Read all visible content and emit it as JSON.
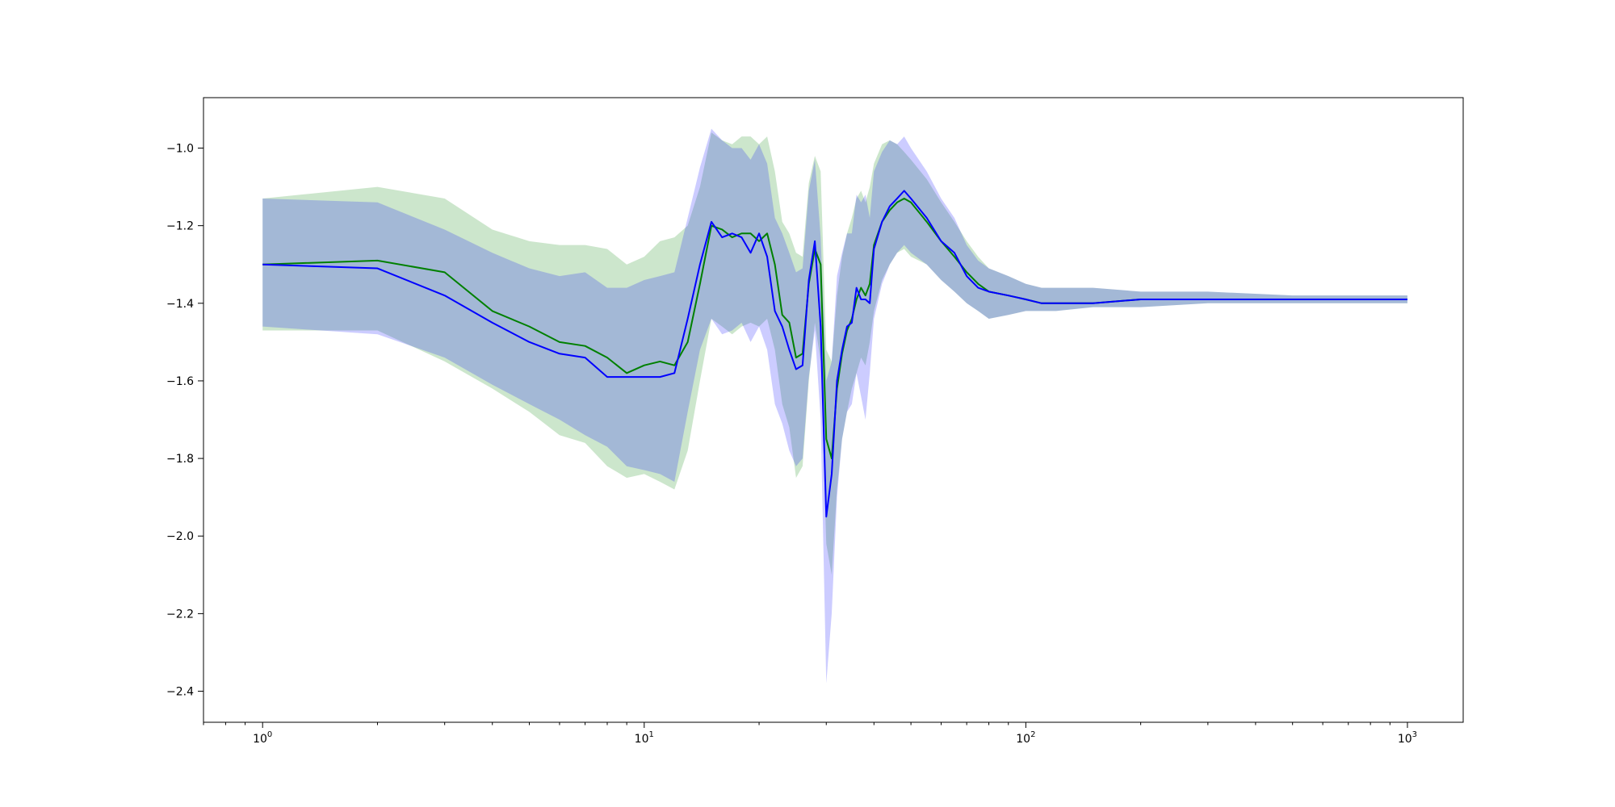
{
  "chart_data": {
    "type": "line",
    "title": "",
    "xlabel": "",
    "ylabel": "",
    "x_scale": "log",
    "xlim": [
      0.7,
      1400
    ],
    "ylim": [
      -2.48,
      -0.87
    ],
    "grid": false,
    "legend": "none",
    "x_ticks": [
      {
        "base": "10",
        "exp": "0",
        "value": 1
      },
      {
        "base": "10",
        "exp": "1",
        "value": 10
      },
      {
        "base": "10",
        "exp": "2",
        "value": 100
      },
      {
        "base": "10",
        "exp": "3",
        "value": 1000
      }
    ],
    "y_ticks": [
      {
        "label": "−1.0",
        "value": -1.0
      },
      {
        "label": "−1.2",
        "value": -1.2
      },
      {
        "label": "−1.4",
        "value": -1.4
      },
      {
        "label": "−1.6",
        "value": -1.6
      },
      {
        "label": "−1.8",
        "value": -1.8
      },
      {
        "label": "−2.0",
        "value": -2.0
      },
      {
        "label": "−2.2",
        "value": -2.2
      },
      {
        "label": "−2.4",
        "value": -2.4
      }
    ],
    "series": [
      {
        "color": "#008000",
        "band_color": "#008000",
        "x": [
          1,
          2,
          3,
          4,
          5,
          6,
          7,
          8,
          9,
          10,
          11,
          12,
          13,
          14,
          15,
          16,
          17,
          18,
          19,
          20,
          21,
          22,
          23,
          24,
          25,
          26,
          27,
          28,
          29,
          30,
          31,
          32,
          33,
          34,
          35,
          36,
          37,
          38,
          39,
          40,
          42,
          44,
          46,
          48,
          50,
          55,
          60,
          65,
          70,
          75,
          80,
          90,
          100,
          110,
          120,
          150,
          200,
          300,
          500,
          1000
        ],
        "y": [
          -1.3,
          -1.29,
          -1.32,
          -1.42,
          -1.46,
          -1.5,
          -1.51,
          -1.54,
          -1.58,
          -1.56,
          -1.55,
          -1.56,
          -1.5,
          -1.35,
          -1.2,
          -1.21,
          -1.23,
          -1.22,
          -1.22,
          -1.24,
          -1.22,
          -1.3,
          -1.43,
          -1.45,
          -1.54,
          -1.53,
          -1.35,
          -1.26,
          -1.3,
          -1.75,
          -1.8,
          -1.62,
          -1.53,
          -1.47,
          -1.44,
          -1.39,
          -1.36,
          -1.38,
          -1.35,
          -1.25,
          -1.19,
          -1.16,
          -1.14,
          -1.13,
          -1.14,
          -1.19,
          -1.24,
          -1.28,
          -1.32,
          -1.35,
          -1.37,
          -1.38,
          -1.39,
          -1.4,
          -1.4,
          -1.4,
          -1.39,
          -1.39,
          -1.39,
          -1.39
        ],
        "lower": [
          -1.47,
          -1.47,
          -1.55,
          -1.62,
          -1.68,
          -1.74,
          -1.76,
          -1.82,
          -1.85,
          -1.84,
          -1.86,
          -1.88,
          -1.78,
          -1.6,
          -1.44,
          -1.46,
          -1.48,
          -1.46,
          -1.45,
          -1.46,
          -1.44,
          -1.52,
          -1.66,
          -1.72,
          -1.85,
          -1.82,
          -1.6,
          -1.45,
          -1.55,
          -2.02,
          -2.1,
          -1.88,
          -1.75,
          -1.68,
          -1.62,
          -1.58,
          -1.54,
          -1.56,
          -1.5,
          -1.42,
          -1.34,
          -1.3,
          -1.27,
          -1.26,
          -1.28,
          -1.3,
          -1.34,
          -1.37,
          -1.4,
          -1.42,
          -1.44,
          -1.43,
          -1.42,
          -1.42,
          -1.42,
          -1.41,
          -1.41,
          -1.4,
          -1.4,
          -1.4
        ],
        "upper": [
          -1.13,
          -1.1,
          -1.13,
          -1.21,
          -1.24,
          -1.25,
          -1.25,
          -1.26,
          -1.3,
          -1.28,
          -1.24,
          -1.23,
          -1.2,
          -1.1,
          -0.96,
          -0.98,
          -0.99,
          -0.97,
          -0.97,
          -0.99,
          -0.97,
          -1.06,
          -1.19,
          -1.22,
          -1.27,
          -1.28,
          -1.09,
          -1.02,
          -1.06,
          -1.52,
          -1.55,
          -1.38,
          -1.28,
          -1.22,
          -1.18,
          -1.13,
          -1.11,
          -1.14,
          -1.1,
          -1.04,
          -0.99,
          -0.98,
          -0.99,
          -1.01,
          -1.03,
          -1.08,
          -1.14,
          -1.19,
          -1.24,
          -1.28,
          -1.31,
          -1.33,
          -1.35,
          -1.36,
          -1.36,
          -1.36,
          -1.37,
          -1.37,
          -1.38,
          -1.38
        ]
      },
      {
        "color": "#0000ff",
        "band_color": "#0000ff",
        "x": [
          1,
          2,
          3,
          4,
          5,
          6,
          7,
          8,
          9,
          10,
          11,
          12,
          13,
          14,
          15,
          16,
          17,
          18,
          19,
          20,
          21,
          22,
          23,
          24,
          25,
          26,
          27,
          28,
          29,
          30,
          31,
          32,
          33,
          34,
          35,
          36,
          37,
          38,
          39,
          40,
          42,
          44,
          46,
          48,
          50,
          55,
          60,
          65,
          70,
          75,
          80,
          90,
          100,
          110,
          120,
          150,
          200,
          300,
          500,
          1000
        ],
        "y": [
          -1.3,
          -1.31,
          -1.38,
          -1.45,
          -1.5,
          -1.53,
          -1.54,
          -1.59,
          -1.59,
          -1.59,
          -1.59,
          -1.58,
          -1.44,
          -1.3,
          -1.19,
          -1.23,
          -1.22,
          -1.23,
          -1.27,
          -1.22,
          -1.28,
          -1.42,
          -1.46,
          -1.52,
          -1.57,
          -1.56,
          -1.34,
          -1.24,
          -1.46,
          -1.95,
          -1.84,
          -1.6,
          -1.52,
          -1.46,
          -1.45,
          -1.36,
          -1.39,
          -1.39,
          -1.4,
          -1.26,
          -1.19,
          -1.15,
          -1.13,
          -1.11,
          -1.13,
          -1.18,
          -1.24,
          -1.27,
          -1.33,
          -1.36,
          -1.37,
          -1.38,
          -1.39,
          -1.4,
          -1.4,
          -1.4,
          -1.39,
          -1.39,
          -1.39,
          -1.39
        ],
        "lower": [
          -1.46,
          -1.48,
          -1.54,
          -1.61,
          -1.66,
          -1.7,
          -1.74,
          -1.77,
          -1.82,
          -1.83,
          -1.84,
          -1.86,
          -1.68,
          -1.52,
          -1.44,
          -1.48,
          -1.47,
          -1.45,
          -1.5,
          -1.46,
          -1.52,
          -1.66,
          -1.71,
          -1.78,
          -1.82,
          -1.8,
          -1.59,
          -1.47,
          -1.7,
          -2.38,
          -2.2,
          -1.9,
          -1.75,
          -1.68,
          -1.66,
          -1.58,
          -1.64,
          -1.7,
          -1.58,
          -1.44,
          -1.35,
          -1.3,
          -1.27,
          -1.25,
          -1.27,
          -1.3,
          -1.34,
          -1.37,
          -1.4,
          -1.42,
          -1.44,
          -1.43,
          -1.42,
          -1.42,
          -1.42,
          -1.41,
          -1.41,
          -1.4,
          -1.4,
          -1.4
        ],
        "upper": [
          -1.13,
          -1.14,
          -1.21,
          -1.27,
          -1.31,
          -1.33,
          -1.32,
          -1.36,
          -1.36,
          -1.34,
          -1.33,
          -1.32,
          -1.18,
          -1.05,
          -0.95,
          -0.98,
          -1.0,
          -1.0,
          -1.03,
          -0.99,
          -1.04,
          -1.18,
          -1.22,
          -1.27,
          -1.32,
          -1.31,
          -1.11,
          -1.03,
          -1.23,
          -1.6,
          -1.55,
          -1.33,
          -1.27,
          -1.22,
          -1.22,
          -1.12,
          -1.14,
          -1.12,
          -1.18,
          -1.06,
          -1.01,
          -0.98,
          -0.99,
          -0.97,
          -1.0,
          -1.06,
          -1.13,
          -1.18,
          -1.25,
          -1.29,
          -1.31,
          -1.33,
          -1.35,
          -1.36,
          -1.36,
          -1.36,
          -1.37,
          -1.37,
          -1.38,
          -1.38
        ]
      }
    ]
  }
}
